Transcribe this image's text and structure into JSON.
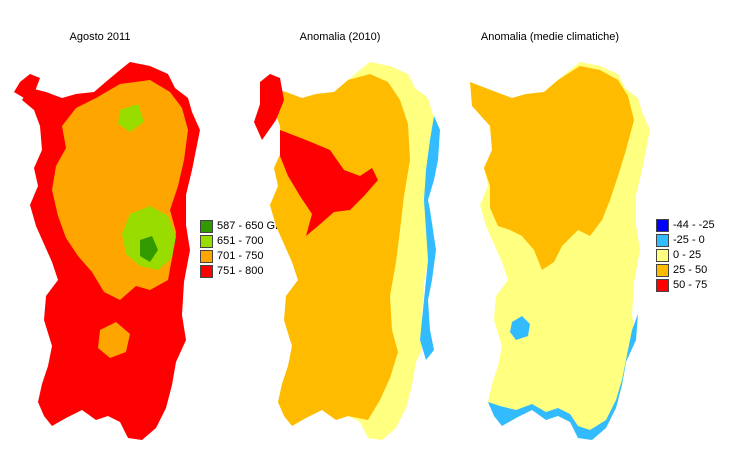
{
  "maps": [
    {
      "title": "Agosto 2011",
      "base_color": "#ff0000",
      "zone_colors": [
        "#ffa500",
        "#99dd00",
        "#339900"
      ],
      "legend": [
        {
          "label": "587 - 650 GDD",
          "color": "#339900"
        },
        {
          "label": "651 - 700",
          "color": "#99dd00"
        },
        {
          "label": "701 - 750",
          "color": "#ffa500"
        },
        {
          "label": "751 - 800",
          "color": "#ff0000"
        }
      ]
    },
    {
      "title": "Anomalia (2010)",
      "base_color": "#ffbb00",
      "zone_colors": [
        "#ff0000",
        "#ffff80",
        "#33bbff"
      ]
    },
    {
      "title": "Anomalia (medie climatiche)",
      "base_color": "#ffff80",
      "zone_colors": [
        "#ffbb00",
        "#33bbff"
      ],
      "legend": [
        {
          "label": "-44 - -25",
          "color": "#0000ff"
        },
        {
          "label": "-25 - 0",
          "color": "#33bbff"
        },
        {
          "label": "0 - 25",
          "color": "#ffff80"
        },
        {
          "label": "25 - 50",
          "color": "#ffbb00"
        },
        {
          "label": "50 - 75",
          "color": "#ff0000"
        }
      ]
    }
  ]
}
